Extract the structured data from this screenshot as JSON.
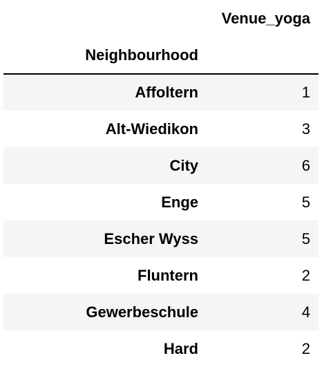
{
  "table": {
    "column_header": "Venue_yoga",
    "index_name": "Neighbourhood",
    "rows": [
      {
        "neighbourhood": "Affoltern",
        "venue_yoga": "1"
      },
      {
        "neighbourhood": "Alt-Wiedikon",
        "venue_yoga": "3"
      },
      {
        "neighbourhood": "City",
        "venue_yoga": "6"
      },
      {
        "neighbourhood": "Enge",
        "venue_yoga": "5"
      },
      {
        "neighbourhood": "Escher Wyss",
        "venue_yoga": "5"
      },
      {
        "neighbourhood": "Fluntern",
        "venue_yoga": "2"
      },
      {
        "neighbourhood": "Gewerbeschule",
        "venue_yoga": "4"
      },
      {
        "neighbourhood": "Hard",
        "venue_yoga": "2"
      }
    ]
  }
}
